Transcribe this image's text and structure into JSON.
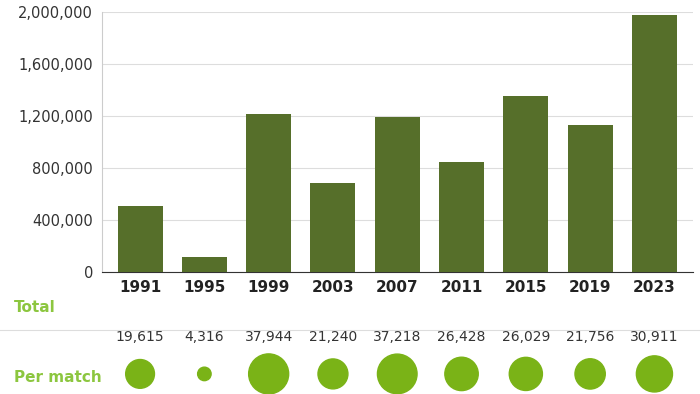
{
  "chart_data": {
    "type": "bar",
    "categories": [
      "1991",
      "1995",
      "1999",
      "2003",
      "2007",
      "2011",
      "2015",
      "2019",
      "2023"
    ],
    "values": [
      510000,
      112000,
      1214000,
      680000,
      1190000,
      845000,
      1353000,
      1131000,
      1978000
    ],
    "color": "#566f2a",
    "ylim": [
      0,
      2000000
    ],
    "yticks": [
      0,
      {
        "value": 400000,
        "label": "400,000"
      },
      {
        "value": 800000,
        "label": "800,000"
      },
      {
        "value": 1200000,
        "label": "1,200,000"
      },
      {
        "value": 1600000,
        "label": "1,600,000"
      },
      {
        "value": 2000000,
        "label": "2,000,000"
      }
    ],
    "grid": true,
    "total_label": "Total",
    "per_match": {
      "label": "Per match",
      "color": "#7ab317",
      "values": [
        19615,
        4316,
        37944,
        21240,
        37218,
        26428,
        26029,
        21756,
        30911
      ],
      "value_labels": [
        "19,615",
        "4,316",
        "37,944",
        "21,240",
        "37,218",
        "26,428",
        "26,029",
        "21,756",
        "30,911"
      ]
    }
  }
}
